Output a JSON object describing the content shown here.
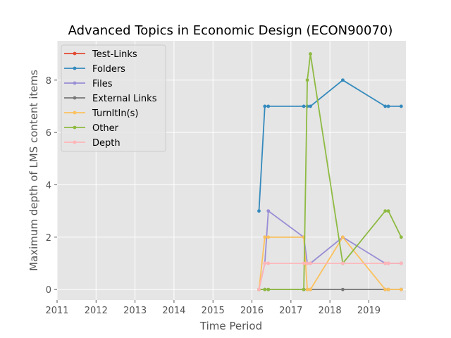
{
  "chart_data": {
    "type": "line",
    "title": "Advanced Topics in Economic Design (ECON90070)",
    "xlabel": "Time Period",
    "ylabel": "Maximum depth of LMS content items",
    "xlim": [
      2011,
      2019.95
    ],
    "ylim": [
      -0.4,
      9.5
    ],
    "xticks": [
      2011,
      2012,
      2013,
      2014,
      2015,
      2016,
      2017,
      2018,
      2019
    ],
    "yticks": [
      0,
      2,
      4,
      6,
      8
    ],
    "grid": true,
    "legend_position": "top-left",
    "series": [
      {
        "name": "Test-Links",
        "color": "#E24A33",
        "points": []
      },
      {
        "name": "Folders",
        "color": "#348ABD",
        "points": [
          [
            2016.18,
            3
          ],
          [
            2016.33,
            7
          ],
          [
            2016.42,
            7
          ],
          [
            2017.33,
            7
          ],
          [
            2017.42,
            7
          ],
          [
            2017.5,
            7
          ],
          [
            2018.33,
            8
          ],
          [
            2019.42,
            7
          ],
          [
            2019.5,
            7
          ],
          [
            2019.83,
            7
          ]
        ]
      },
      {
        "name": "Files",
        "color": "#988ED5",
        "points": [
          [
            2016.18,
            0
          ],
          [
            2016.33,
            1
          ],
          [
            2016.42,
            3
          ],
          [
            2017.33,
            2
          ],
          [
            2017.42,
            1
          ],
          [
            2017.5,
            1
          ],
          [
            2018.33,
            2
          ],
          [
            2019.42,
            1
          ],
          [
            2019.5,
            1
          ],
          [
            2019.83,
            1
          ]
        ]
      },
      {
        "name": "External Links",
        "color": "#777777",
        "points": [
          [
            2016.18,
            0
          ],
          [
            2016.33,
            0
          ],
          [
            2016.42,
            0
          ],
          [
            2017.33,
            0
          ],
          [
            2017.42,
            0
          ],
          [
            2017.5,
            0
          ],
          [
            2018.33,
            0
          ],
          [
            2019.42,
            0
          ],
          [
            2019.5,
            0
          ],
          [
            2019.83,
            0
          ]
        ]
      },
      {
        "name": "TurnItIn(s)",
        "color": "#FBC15E",
        "points": [
          [
            2016.18,
            0
          ],
          [
            2016.33,
            2
          ],
          [
            2016.42,
            2
          ],
          [
            2017.33,
            2
          ],
          [
            2017.42,
            0
          ],
          [
            2017.5,
            0
          ],
          [
            2018.33,
            2
          ],
          [
            2019.42,
            0
          ],
          [
            2019.5,
            0
          ],
          [
            2019.83,
            0
          ]
        ]
      },
      {
        "name": "Other",
        "color": "#8EBA42",
        "points": [
          [
            2016.18,
            0
          ],
          [
            2016.33,
            0
          ],
          [
            2016.42,
            0
          ],
          [
            2017.33,
            0
          ],
          [
            2017.42,
            8
          ],
          [
            2017.5,
            9
          ],
          [
            2018.33,
            1
          ],
          [
            2019.42,
            3
          ],
          [
            2019.5,
            3
          ],
          [
            2019.83,
            2
          ]
        ]
      },
      {
        "name": "Depth",
        "color": "#FFB5B8",
        "points": [
          [
            2016.18,
            0
          ],
          [
            2016.33,
            1
          ],
          [
            2016.42,
            1
          ],
          [
            2017.33,
            1
          ],
          [
            2017.42,
            1
          ],
          [
            2017.5,
            1
          ],
          [
            2018.33,
            1
          ],
          [
            2019.42,
            1
          ],
          [
            2019.5,
            1
          ],
          [
            2019.83,
            1
          ]
        ]
      }
    ]
  }
}
